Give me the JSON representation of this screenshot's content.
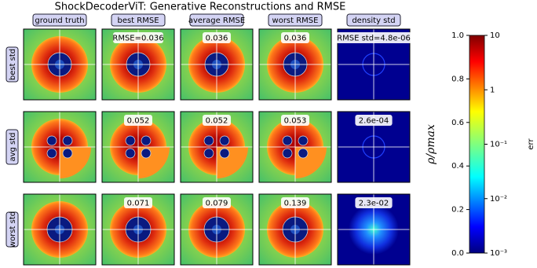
{
  "title": "ShockDecoderViT: Generative Reconstructions and RMSE",
  "columns": [
    "ground truth",
    "best RMSE",
    "average RMSE",
    "worst RMSE",
    "density std"
  ],
  "rows": [
    {
      "label": "best std",
      "annotations": [
        "RMSE=0.036",
        "0.036",
        "0.036",
        "RMSE std=4.8e-06"
      ]
    },
    {
      "label": "avg std",
      "annotations": [
        "0.052",
        "0.052",
        "0.053",
        "2.6e-04"
      ]
    },
    {
      "label": "worst std",
      "annotations": [
        "0.071",
        "0.079",
        "0.139",
        "2.3e-02"
      ]
    }
  ],
  "colorbar": {
    "label": "ρ/ρmax",
    "ylim": [
      0,
      1
    ],
    "yticks": [
      {
        "value": 0,
        "label": "0.0"
      },
      {
        "value": 0.2,
        "label": "0.2"
      },
      {
        "value": 0.4,
        "label": "0.4"
      },
      {
        "value": 0.6,
        "label": "0.6"
      },
      {
        "value": 0.8,
        "label": "0.8"
      },
      {
        "value": 1,
        "label": "1.0"
      }
    ],
    "y2label": "err",
    "y2lim": [
      0.001,
      10
    ],
    "y2log": true,
    "y2ticks": [
      {
        "value": 10,
        "label": "10"
      },
      {
        "value": 1,
        "label": "1"
      },
      {
        "value": 0.1,
        "label": "10⁻¹"
      },
      {
        "value": 0.01,
        "label": "10⁻²"
      },
      {
        "value": 0.001,
        "label": "10⁻³"
      }
    ]
  }
}
